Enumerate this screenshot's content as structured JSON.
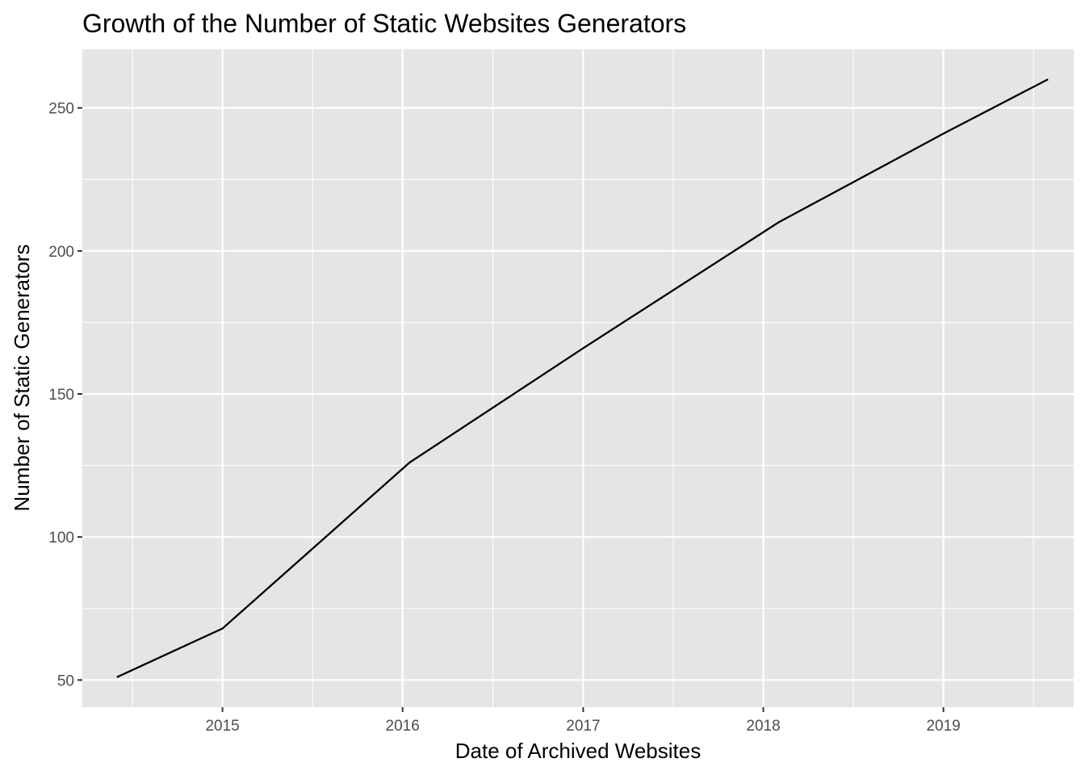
{
  "chart_data": {
    "type": "line",
    "title": "Growth of the Number of Static Websites Generators",
    "xlabel": "Date of Archived Websites",
    "ylabel": "Number of Static Generators",
    "x_type": "date",
    "xlim": [
      "2014-03-23",
      "2019-09-22"
    ],
    "ylim": [
      40.5,
      270.5
    ],
    "x_ticks": [
      "2015",
      "2016",
      "2017",
      "2018",
      "2019"
    ],
    "y_ticks": [
      "50",
      "100",
      "150",
      "200",
      "250"
    ],
    "grid": true,
    "legend": "none",
    "series": [
      {
        "color": "#000000",
        "x": [
          "2014-06-01",
          "2015-01-01",
          "2016-01-15",
          "2017-01-01",
          "2018-02-01",
          "2019-01-01",
          "2019-08-01"
        ],
        "y": [
          51,
          68,
          126,
          166,
          210,
          241,
          260
        ]
      }
    ],
    "panel_background": "#e5e5e5",
    "grid_color": "#ffffff"
  }
}
